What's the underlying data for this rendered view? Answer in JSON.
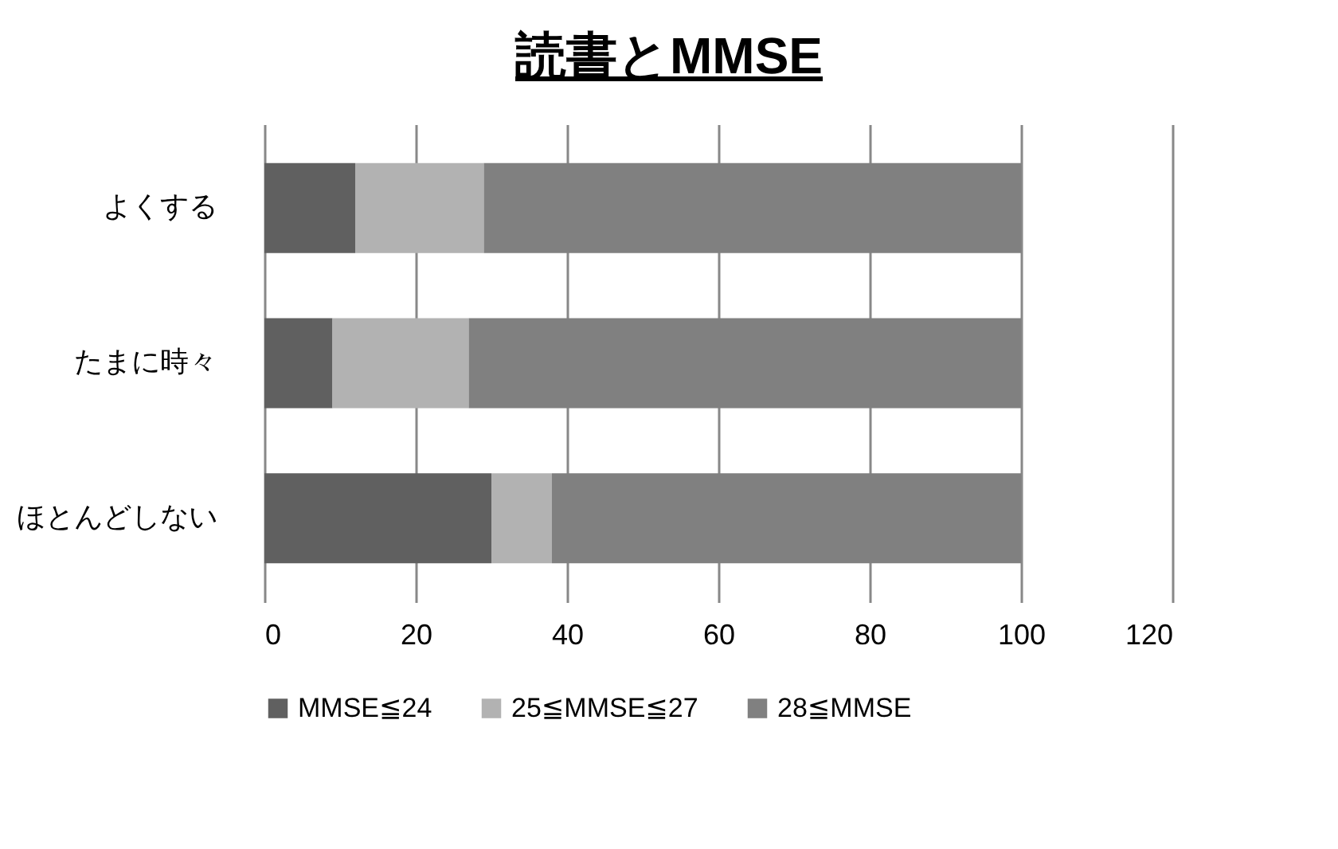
{
  "chart_data": {
    "type": "bar",
    "title": "読書とMMSE",
    "orientation": "horizontal",
    "stacked": true,
    "categories": [
      "よくする",
      "たまに時々",
      "ほとんどしない"
    ],
    "series": [
      {
        "name": "MMSE≦24",
        "color": "#606060",
        "values": [
          12,
          9,
          30
        ]
      },
      {
        "name": "25≦MMSE≦27",
        "color": "#b2b2b2",
        "values": [
          17,
          18,
          8
        ]
      },
      {
        "name": "28≦MMSE",
        "color": "#808080",
        "values": [
          71,
          73,
          62
        ]
      }
    ],
    "xlim": [
      0,
      120
    ],
    "xticks": [
      0,
      20,
      40,
      60,
      80,
      100,
      120
    ],
    "grid": "x",
    "legend": "bottom"
  }
}
